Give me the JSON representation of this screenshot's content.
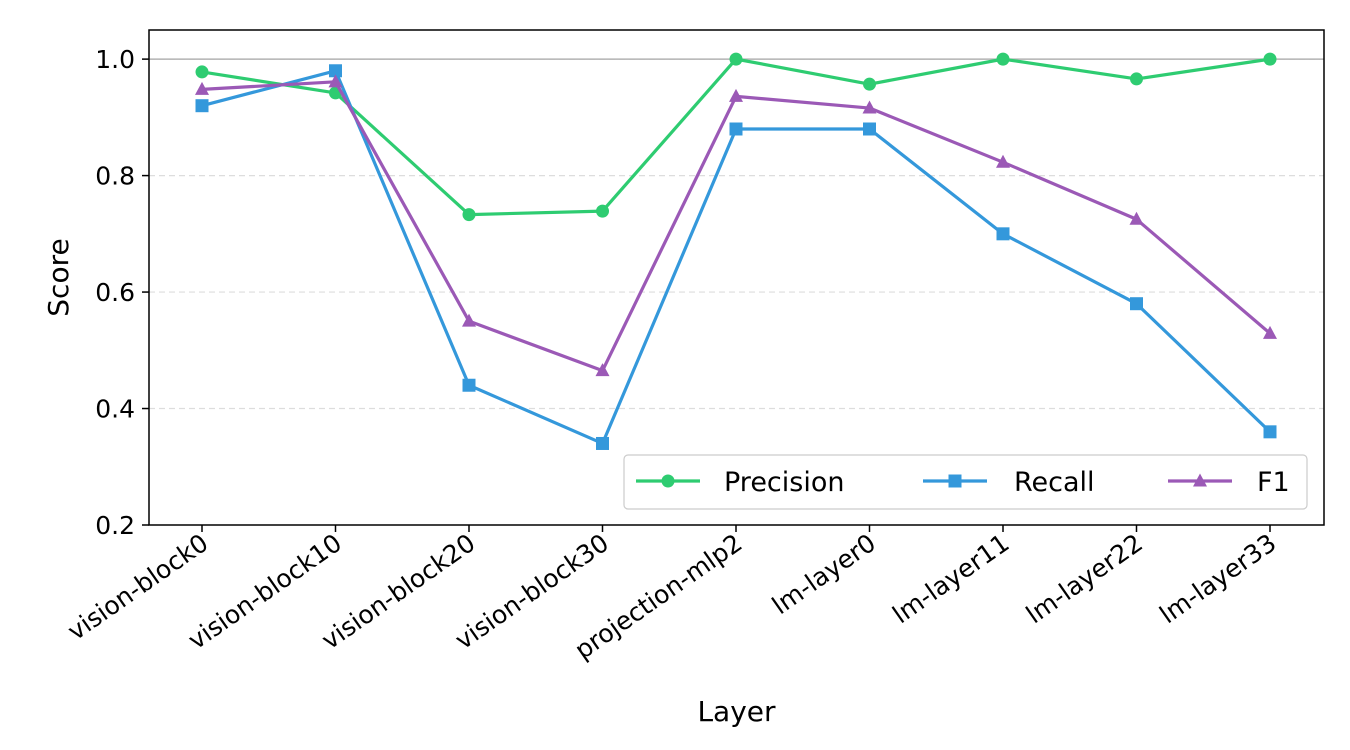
{
  "chart_data": {
    "type": "line",
    "xlabel": "Layer",
    "ylabel": "Score",
    "categories": [
      "vision-block0",
      "vision-block10",
      "vision-block20",
      "vision-block30",
      "projection-mlp2",
      "lm-layer0",
      "lm-layer11",
      "lm-layer22",
      "lm-layer33"
    ],
    "ylim": [
      0.2,
      1.05
    ],
    "yticks": [
      0.2,
      0.4,
      0.6,
      0.8,
      1.0
    ],
    "ytick_labels": [
      "0.2",
      "0.4",
      "0.6",
      "0.8",
      "1.0"
    ],
    "grid": "horizontal dashed",
    "reference_line": 1.0,
    "legend_position": "lower-right",
    "series": [
      {
        "name": "Precision",
        "color": "#2ecc71",
        "marker": "circle",
        "values": [
          0.978,
          0.942,
          0.733,
          0.739,
          1.0,
          0.957,
          1.0,
          0.966,
          1.0
        ]
      },
      {
        "name": "Recall",
        "color": "#3498db",
        "marker": "square",
        "values": [
          0.92,
          0.98,
          0.44,
          0.34,
          0.88,
          0.88,
          0.7,
          0.58,
          0.36
        ]
      },
      {
        "name": "F1",
        "color": "#9b59b6",
        "marker": "triangle",
        "values": [
          0.948,
          0.961,
          0.55,
          0.465,
          0.936,
          0.916,
          0.823,
          0.725,
          0.529
        ]
      }
    ]
  }
}
